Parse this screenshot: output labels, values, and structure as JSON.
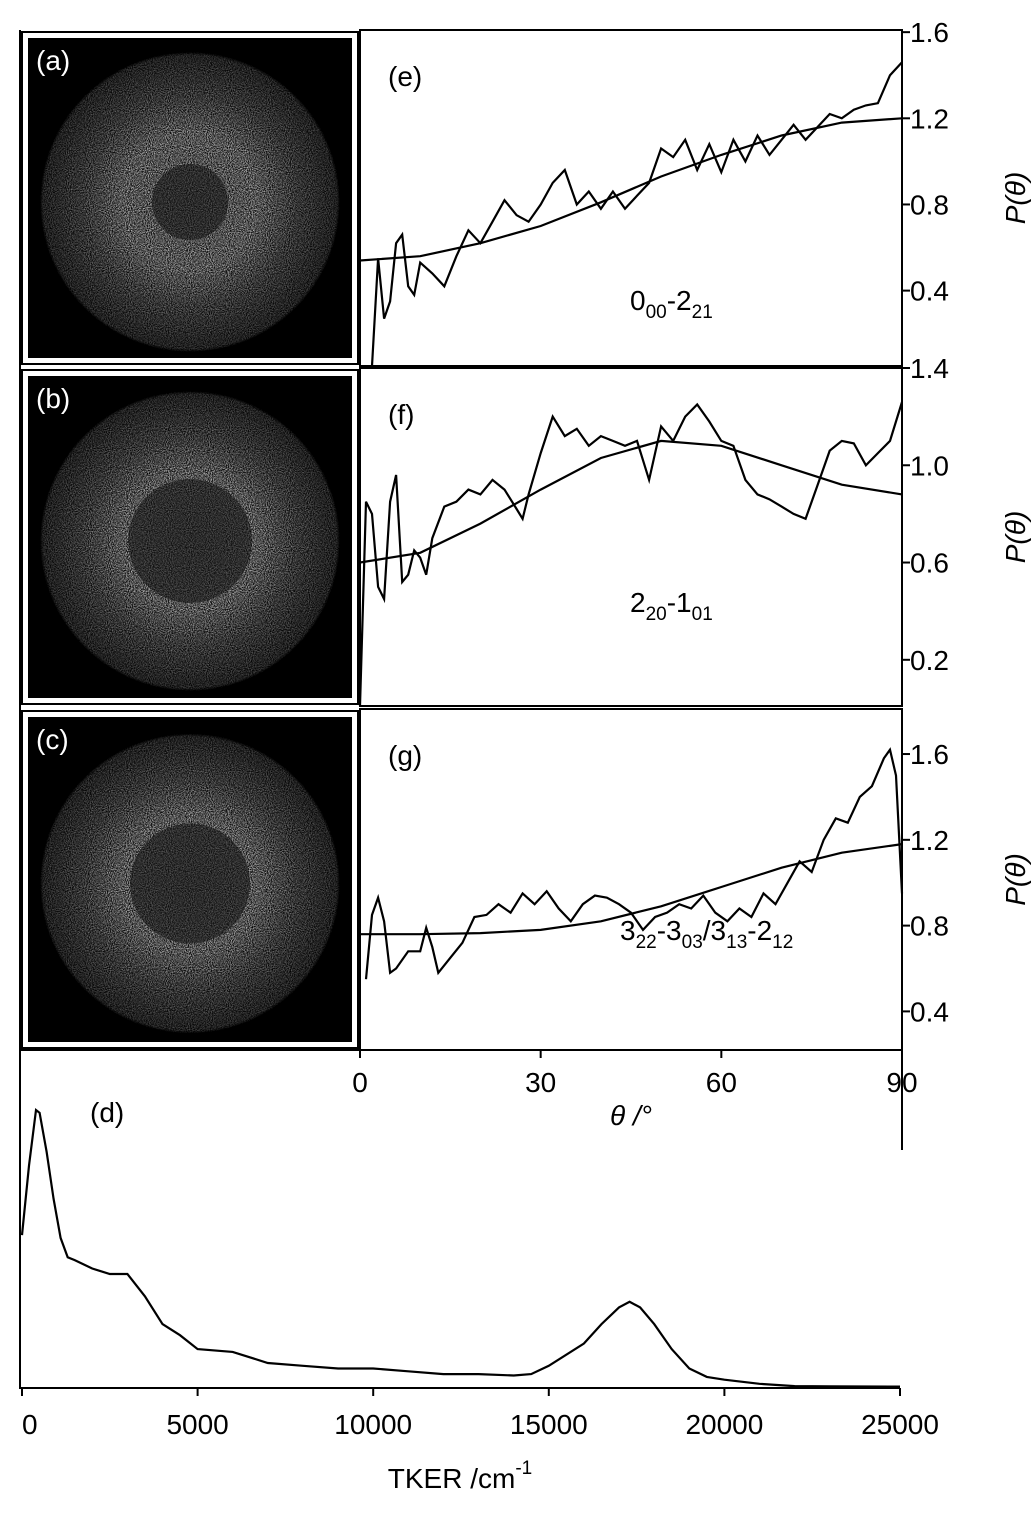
{
  "chart_data": [
    {
      "type": "line",
      "label": "(e)",
      "ylabel": "P(θ)",
      "annotation": [
        "0",
        "00",
        "-2",
        "21"
      ],
      "xlim": [
        0,
        90
      ],
      "ylim": [
        0.05,
        1.61
      ],
      "yticks": [
        1.6,
        1.2,
        0.8,
        0.4
      ],
      "series": [
        {
          "color": "#000000",
          "x": [
            2,
            3,
            4,
            5,
            6,
            7,
            8,
            9,
            10,
            12,
            14,
            16,
            18,
            20,
            22,
            24,
            26,
            28,
            30,
            32,
            34,
            36,
            38,
            40,
            42,
            44,
            46,
            48,
            50,
            52,
            54,
            56,
            58,
            60,
            62,
            64,
            66,
            68,
            70,
            72,
            74,
            76,
            78,
            80,
            82,
            84,
            86,
            88,
            90
          ],
          "values": [
            0.05,
            0.55,
            0.27,
            0.35,
            0.62,
            0.66,
            0.42,
            0.38,
            0.53,
            0.48,
            0.42,
            0.56,
            0.68,
            0.62,
            0.72,
            0.82,
            0.75,
            0.72,
            0.8,
            0.9,
            0.96,
            0.8,
            0.86,
            0.78,
            0.86,
            0.78,
            0.84,
            0.9,
            1.06,
            1.02,
            1.1,
            0.96,
            1.08,
            0.95,
            1.1,
            1.0,
            1.12,
            1.03,
            1.1,
            1.17,
            1.1,
            1.16,
            1.22,
            1.2,
            1.24,
            1.26,
            1.27,
            1.4,
            1.46
          ]
        },
        {
          "color": "#000000",
          "x": [
            0,
            10,
            20,
            30,
            40,
            50,
            60,
            70,
            80,
            90
          ],
          "values": [
            0.54,
            0.56,
            0.62,
            0.7,
            0.81,
            0.93,
            1.03,
            1.12,
            1.18,
            1.2
          ]
        }
      ]
    },
    {
      "type": "line",
      "label": "(f)",
      "ylabel": "P(θ)",
      "annotation": [
        "2",
        "20",
        "-1",
        "01"
      ],
      "xlim": [
        0,
        90
      ],
      "ylim": [
        0.01,
        1.4
      ],
      "yticks": [
        1.4,
        {
          "value": 1,
          "label": "1.0"
        },
        0.6,
        0.2
      ],
      "series": [
        {
          "color": "#000000",
          "x": [
            0,
            1,
            2,
            3,
            4,
            5,
            6,
            7,
            8,
            9,
            10,
            11,
            12,
            14,
            16,
            18,
            20,
            22,
            24,
            26,
            27,
            28,
            30,
            32,
            34,
            36,
            38,
            40,
            42,
            44,
            46,
            48,
            50,
            52,
            54,
            56,
            58,
            60,
            62,
            64,
            66,
            68,
            70,
            72,
            74,
            76,
            78,
            80,
            82,
            84,
            86,
            88,
            90
          ],
          "values": [
            0.01,
            0.85,
            0.8,
            0.5,
            0.45,
            0.85,
            0.96,
            0.52,
            0.55,
            0.65,
            0.62,
            0.55,
            0.7,
            0.83,
            0.85,
            0.9,
            0.88,
            0.94,
            0.9,
            0.82,
            0.78,
            0.88,
            1.05,
            1.2,
            1.12,
            1.15,
            1.08,
            1.12,
            1.1,
            1.08,
            1.1,
            0.94,
            1.16,
            1.1,
            1.2,
            1.25,
            1.18,
            1.1,
            1.08,
            0.94,
            0.88,
            0.86,
            0.83,
            0.8,
            0.78,
            0.92,
            1.06,
            1.1,
            1.09,
            1.0,
            1.05,
            1.1,
            1.26
          ]
        },
        {
          "color": "#000000",
          "x": [
            0,
            10,
            20,
            30,
            40,
            50,
            60,
            70,
            80,
            90
          ],
          "values": [
            0.6,
            0.64,
            0.76,
            0.9,
            1.03,
            1.1,
            1.08,
            1.0,
            0.92,
            0.88
          ]
        }
      ]
    },
    {
      "type": "line",
      "label": "(g)",
      "ylabel": "P(θ)",
      "annotation": [
        "3",
        "22",
        "-3",
        "03",
        "/3",
        "13",
        "-2",
        "12"
      ],
      "xlim": [
        0,
        90
      ],
      "ylim": [
        0.22,
        1.81
      ],
      "yticks": [
        1.6,
        1.2,
        0.8,
        0.4
      ],
      "xticks": [
        0,
        30,
        60,
        90
      ],
      "xlabel": "θ /°",
      "series": [
        {
          "color": "#000000",
          "x": [
            1,
            2,
            3,
            4,
            5,
            6,
            8,
            10,
            11,
            12,
            13,
            15,
            17,
            19,
            21,
            23,
            25,
            27,
            29,
            31,
            33,
            35,
            37,
            39,
            41,
            43,
            45,
            47,
            49,
            51,
            53,
            55,
            57,
            59,
            61,
            63,
            65,
            67,
            69,
            71,
            73,
            75,
            77,
            79,
            81,
            83,
            85,
            87,
            88,
            89,
            90
          ],
          "values": [
            0.55,
            0.85,
            0.93,
            0.82,
            0.58,
            0.6,
            0.68,
            0.68,
            0.79,
            0.7,
            0.58,
            0.65,
            0.72,
            0.84,
            0.85,
            0.9,
            0.86,
            0.95,
            0.9,
            0.96,
            0.88,
            0.82,
            0.9,
            0.94,
            0.93,
            0.9,
            0.86,
            0.78,
            0.84,
            0.86,
            0.9,
            0.88,
            0.94,
            0.86,
            0.82,
            0.88,
            0.84,
            0.95,
            0.9,
            1.0,
            1.1,
            1.05,
            1.2,
            1.3,
            1.28,
            1.4,
            1.45,
            1.58,
            1.62,
            1.5,
            0.95
          ]
        },
        {
          "color": "#000000",
          "x": [
            0,
            10,
            20,
            30,
            40,
            50,
            60,
            70,
            80,
            90
          ],
          "values": [
            0.76,
            0.76,
            0.765,
            0.78,
            0.82,
            0.89,
            0.98,
            1.07,
            1.14,
            1.18
          ]
        }
      ]
    },
    {
      "type": "line",
      "label": "(d)",
      "xlabel": "TKER /cm",
      "xlabel_sup": "-1",
      "xlim": [
        0,
        25000
      ],
      "ylim": [
        0,
        1
      ],
      "xticks": [
        0,
        5000,
        10000,
        15000,
        20000,
        25000
      ],
      "series": [
        {
          "color": "#000000",
          "x": [
            0,
            200,
            400,
            500,
            700,
            900,
            1100,
            1300,
            1500,
            2000,
            2500,
            3000,
            3500,
            4000,
            4500,
            5000,
            6000,
            7000,
            8000,
            9000,
            10000,
            11000,
            12000,
            13000,
            14000,
            14500,
            15000,
            16000,
            16500,
            17000,
            17300,
            17600,
            18000,
            18500,
            19000,
            19500,
            20000,
            21000,
            22000,
            23000,
            25000
          ],
          "values": [
            0.55,
            0.8,
            1.0,
            0.99,
            0.85,
            0.68,
            0.54,
            0.47,
            0.46,
            0.43,
            0.41,
            0.41,
            0.33,
            0.23,
            0.19,
            0.14,
            0.13,
            0.09,
            0.08,
            0.07,
            0.07,
            0.06,
            0.05,
            0.05,
            0.045,
            0.05,
            0.08,
            0.16,
            0.23,
            0.29,
            0.31,
            0.29,
            0.23,
            0.14,
            0.07,
            0.04,
            0.03,
            0.015,
            0.007,
            0.006,
            0.005
          ]
        }
      ]
    }
  ],
  "images": [
    {
      "label": "(a)"
    },
    {
      "label": "(b)"
    },
    {
      "label": "(c)"
    }
  ]
}
